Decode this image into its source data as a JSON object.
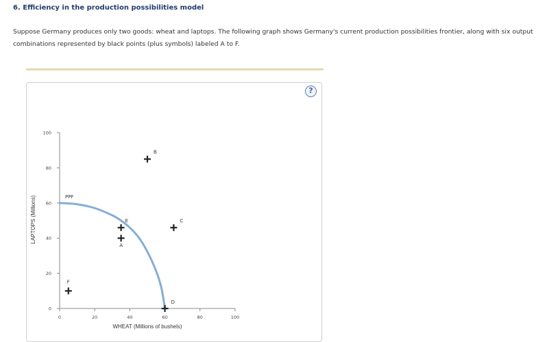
{
  "question": {
    "title": "6. Efficiency in the production possibilities model",
    "description": "Suppose Germany produces only two goods: wheat and laptops. The following graph shows Germany's current production possibilities frontier, along with six output combinations represented by black points (plus symbols) labeled A to F."
  },
  "help_button": {
    "label": "?"
  },
  "colors": {
    "frontier": "#85add4",
    "point": "#222222",
    "axis": "#888888"
  },
  "chart_data": {
    "type": "scatter",
    "xlabel": "WHEAT (Millions of bushels)",
    "ylabel": "LAPTOPS (Millions)",
    "xlim": [
      0,
      100
    ],
    "ylim": [
      0,
      100
    ],
    "xticks": [
      0,
      20,
      40,
      60,
      80,
      100
    ],
    "yticks": [
      0,
      20,
      40,
      60,
      80,
      100
    ],
    "frontier": {
      "label": "PPF",
      "points": [
        [
          0,
          60
        ],
        [
          10,
          59.3
        ],
        [
          20,
          57.1
        ],
        [
          30,
          53
        ],
        [
          35,
          50
        ],
        [
          40,
          46
        ],
        [
          45,
          40.5
        ],
        [
          50,
          32.3
        ],
        [
          55,
          21.3
        ],
        [
          58,
          11.7
        ],
        [
          60,
          0
        ]
      ]
    },
    "points": [
      {
        "label": "A",
        "x": 35,
        "y": 40
      },
      {
        "label": "B",
        "x": 50,
        "y": 85
      },
      {
        "label": "C",
        "x": 65,
        "y": 46
      },
      {
        "label": "D",
        "x": 60,
        "y": 0
      },
      {
        "label": "E",
        "x": 35,
        "y": 46
      },
      {
        "label": "F",
        "x": 5,
        "y": 10
      }
    ]
  }
}
